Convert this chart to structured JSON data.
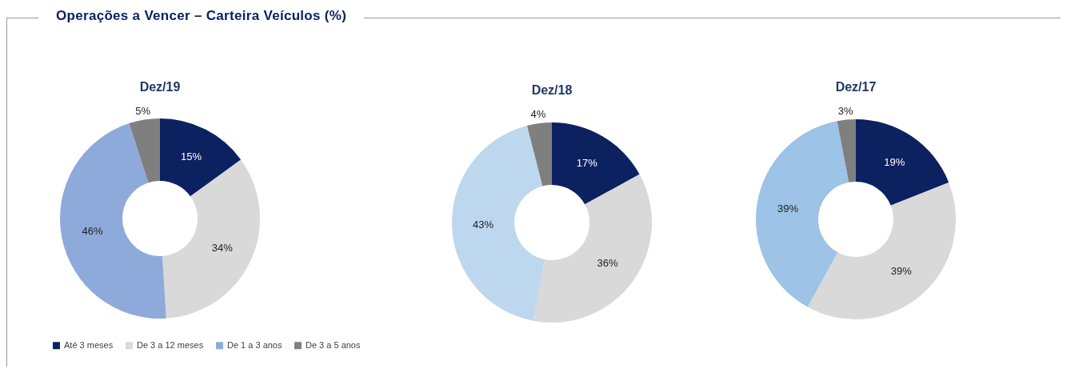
{
  "chart_data": [
    {
      "type": "other",
      "title": "Operações a Vencer – Carteira Veículos (%)"
    },
    {
      "type": "donut",
      "title": "Dez/19",
      "categories": [
        "Até 3 meses",
        "De 3 a 12 meses",
        "De 1 a 3 anos",
        "De 3 a 5 anos"
      ],
      "values": [
        15,
        34,
        46,
        5
      ],
      "value_labels": [
        "15%",
        "34%",
        "46%",
        "5%"
      ],
      "colors": [
        "#0b2160",
        "#d9d9d9",
        "#8eaadb",
        "#7f7f7f"
      ],
      "legend": "bottom"
    },
    {
      "type": "donut",
      "title": "Dez/18",
      "categories": [
        null,
        null,
        null,
        null
      ],
      "values": [
        17,
        36,
        43,
        4
      ],
      "value_labels": [
        "17%",
        "36%",
        "43%",
        "4%"
      ],
      "colors": [
        "#0b2160",
        "#d9d9d9",
        "#bdd7ee",
        "#7f7f7f"
      ]
    },
    {
      "type": "donut",
      "title": "Dez/17",
      "categories": [
        null,
        null,
        null,
        null
      ],
      "values": [
        19,
        39,
        39,
        3
      ],
      "value_labels": [
        "19%",
        "39%",
        "39%",
        "3%"
      ],
      "colors": [
        "#0b2160",
        "#d9d9d9",
        "#9dc3e6",
        "#7f7f7f"
      ]
    }
  ]
}
